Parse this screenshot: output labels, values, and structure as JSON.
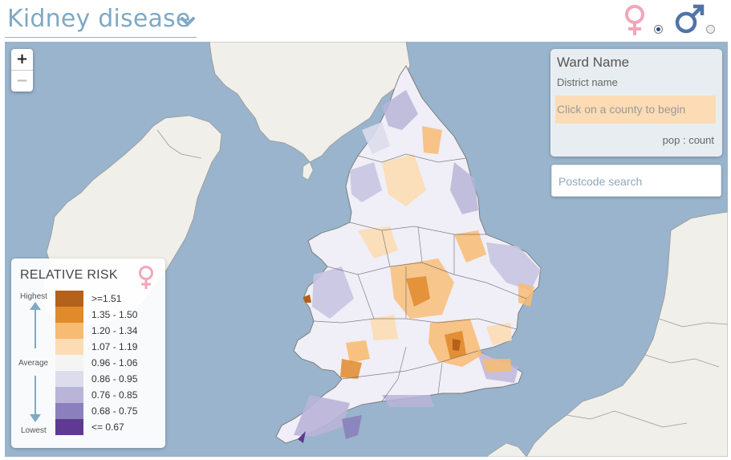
{
  "header": {
    "title": "Kidney disease",
    "selected_sex": "female",
    "colors": {
      "title": "#7fa9c4",
      "female": "#f1a7b8",
      "male": "#4f74a8"
    }
  },
  "map": {
    "zoom_in_label": "+",
    "zoom_out_label": "−",
    "colors": {
      "sea": "#99b4cc",
      "land": "#f1efe9",
      "border": "#8a8a8a"
    }
  },
  "info_panel": {
    "ward_name": "Ward Name",
    "district_name": "District name",
    "prompt": "Click on a county to begin",
    "pop_count": "pop : count"
  },
  "search": {
    "placeholder": "Postcode search"
  },
  "legend": {
    "title": "RELATIVE RISK",
    "highest_label": "Highest",
    "average_label": "Average",
    "lowest_label": "Lowest",
    "classes": [
      {
        "range": ">=1.51",
        "color": "#b4611b"
      },
      {
        "range": "1.35 - 1.50",
        "color": "#e08a2c"
      },
      {
        "range": "1.20 - 1.34",
        "color": "#f8bb72"
      },
      {
        "range": "1.07 - 1.19",
        "color": "#fcdcb4"
      },
      {
        "range": "0.96 - 1.06",
        "color": "#f4f4f4"
      },
      {
        "range": "0.86 - 0.95",
        "color": "#dcdcec"
      },
      {
        "range": "0.76 - 0.85",
        "color": "#b9b4d8"
      },
      {
        "range": "0.68 - 0.75",
        "color": "#8c80bc"
      },
      {
        "range": "<= 0.67",
        "color": "#5e3a92"
      }
    ]
  }
}
